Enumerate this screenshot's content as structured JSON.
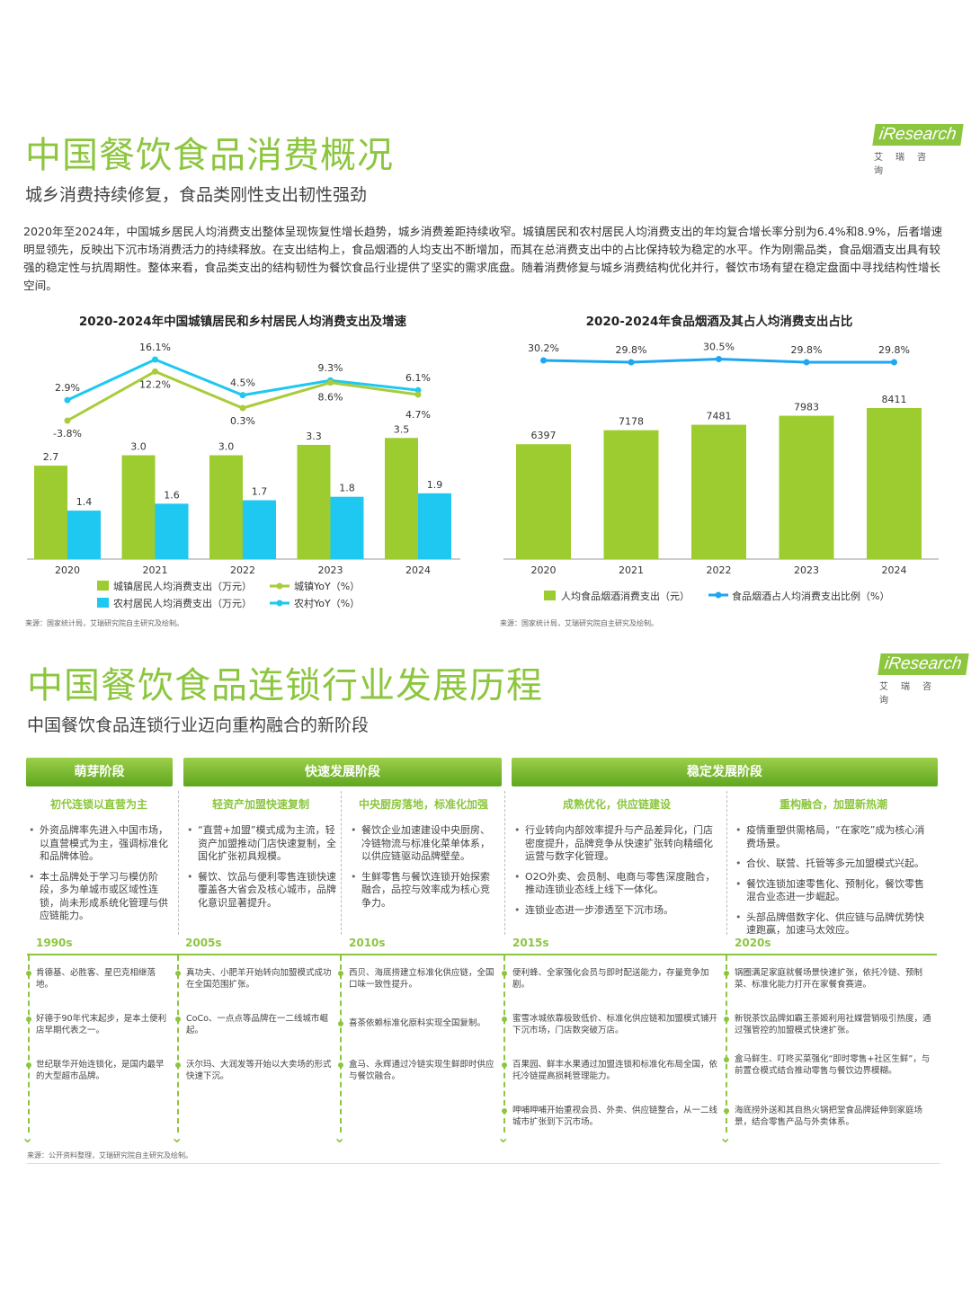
{
  "brand": {
    "logo_text": "iResearch",
    "logo_sub": "艾瑞咨询"
  },
  "section1": {
    "title": "中国餐饮食品消费概况",
    "subtitle": "城乡消费持续修复，食品类刚性支出韧性强劲",
    "paragraph": "2020年至2024年，中国城乡居民人均消费支出整体呈现恢复性增长趋势，城乡消费差距持续收窄。城镇居民和农村居民人均消费支出的年均复合增长率分别为6.4%和8.9%，后者增速明显领先，反映出下沉市场消费活力的持续释放。在支出结构上，食品烟酒的人均支出不断增加，而其在总消费支出中的占比保持较为稳定的水平。作为刚需品类，食品烟酒支出具有较强的稳定性与抗周期性。整体来看，食品类支出的结构韧性为餐饮食品行业提供了坚实的需求底盘。随着消费修复与城乡消费结构优化并行，餐饮市场有望在稳定盘面中寻找结构性增长空间。",
    "source1": "来源：国家统计局，艾瑞研究院自主研究及绘制。",
    "source2": "来源：国家统计局，艾瑞研究院自主研究及绘制。"
  },
  "chart_data": [
    {
      "type": "bar",
      "title": "2020-2024年中国城镇居民和乡村居民人均消费支出及增速",
      "categories": [
        "2020",
        "2021",
        "2022",
        "2023",
        "2024"
      ],
      "series": [
        {
          "name": "城镇居民人均消费支出（万元）",
          "kind": "bar",
          "color": "#9ccc2f",
          "values": [
            2.7,
            3.0,
            3.0,
            3.3,
            3.5
          ],
          "labels": [
            "2.7",
            "3.0",
            "3.0",
            "3.3",
            "3.5"
          ]
        },
        {
          "name": "农村居民人均消费支出（万元）",
          "kind": "bar",
          "color": "#1ec8f0",
          "values": [
            1.4,
            1.6,
            1.7,
            1.8,
            1.9
          ],
          "labels": [
            "1.4",
            "1.6",
            "1.7",
            "1.8",
            "1.9"
          ]
        },
        {
          "name": "城镇YoY（%）",
          "kind": "line",
          "color": "#a8cc3a",
          "values": [
            -3.8,
            12.2,
            0.3,
            8.6,
            4.7
          ],
          "labels": [
            "-3.8%",
            "12.2%",
            "0.3%",
            "8.6%",
            "4.7%"
          ]
        },
        {
          "name": "农村YoY（%）",
          "kind": "line",
          "color": "#1ec8f0",
          "values": [
            2.9,
            16.1,
            4.5,
            9.3,
            6.1
          ],
          "labels": [
            "2.9%",
            "16.1%",
            "4.5%",
            "9.3%",
            "6.1%"
          ]
        }
      ]
    },
    {
      "type": "bar",
      "title": "2020-2024年食品烟酒及其占人均消费支出占比",
      "categories": [
        "2020",
        "2021",
        "2022",
        "2023",
        "2024"
      ],
      "series": [
        {
          "name": "人均食品烟酒消费支出（元）",
          "kind": "bar",
          "color": "#9ccc2f",
          "values": [
            6397,
            7178,
            7481,
            7983,
            8411
          ],
          "labels": [
            "6397",
            "7178",
            "7481",
            "7983",
            "8411"
          ]
        },
        {
          "name": "食品烟酒占人均消费支出比例（%）",
          "kind": "line",
          "color": "#1ea7f0",
          "values": [
            30.2,
            29.8,
            30.5,
            29.8,
            29.8
          ],
          "labels": [
            "30.2%",
            "29.8%",
            "30.5%",
            "29.8%",
            "29.8%"
          ]
        }
      ]
    }
  ],
  "section2": {
    "title": "中国餐饮食品连锁行业发展历程",
    "subtitle": "中国餐饮食品连锁行业迈向重构融合的新阶段",
    "stages": [
      "萌芽阶段",
      "快速发展阶段",
      "稳定发展阶段"
    ],
    "phases": [
      {
        "title": "初代连锁以直营为主",
        "bullets": [
          "外资品牌率先进入中国市场，以直营模式为主，强调标准化和品牌体验。",
          "本土品牌处于学习与模仿阶段，多为单城市或区域性连锁，尚未形成系统化管理与供应链能力。"
        ],
        "year": "1990s",
        "events": [
          "肯德基、必胜客、星巴克相继落地。",
          "好德于90年代末起步，是本土便利店早期代表之一。",
          "世纪联华开始连锁化，是国内最早的大型超市品牌。"
        ]
      },
      {
        "title": "轻资产加盟快速复制",
        "bullets": [
          "“直营+加盟”模式成为主流，轻资产加盟推动门店快速复制，全国化扩张初具规模。",
          "餐饮、饮品与便利零售连锁快速覆盖各大省会及核心城市，品牌化意识显著提升。"
        ],
        "year": "2005s",
        "events": [
          "真功夫、小肥羊开始转向加盟模式成功在全国范围扩张。",
          "CoCo、一点点等品牌在一二线城市崛起。",
          "沃尔玛、大润发等开始以大卖场的形式快速下沉。"
        ]
      },
      {
        "title": "中央厨房落地，标准化加强",
        "bullets": [
          "餐饮企业加速建设中央厨房、冷链物流与标准化菜单体系，以供应链驱动品牌壁垒。",
          "生鲜零售与餐饮连锁开始探索融合，品控与效率成为核心竞争力。"
        ],
        "year": "2010s",
        "events": [
          "西贝、海底捞建立标准化供应链，全国口味一致性提升。",
          "喜茶依赖标准化原料实现全国复制。",
          "盒马、永辉通过冷链实现生鲜即时供应与餐饮融合。"
        ]
      },
      {
        "title": "成熟优化，供应链建设",
        "bullets": [
          "行业转向内部效率提升与产品差异化，门店密度提升，品牌竞争从快速扩张转向精细化运营与数字化管理。",
          "O2O外卖、会员制、电商与零售深度融合，推动连锁业态线上线下一体化。",
          "连锁业态进一步渗透至下沉市场。"
        ],
        "year": "2015s",
        "events": [
          "便利蜂、全家强化会员与即时配送能力，存量竞争加剧。",
          "蜜雪冰城依靠极致低价、标准化供应链和加盟模式铺开下沉市场，门店数突破万店。",
          "百果园、鲜丰水果通过加盟连锁和标准化布局全国，依托冷链提高损耗管理能力。",
          "呷哺呷哺开始重视会员、外卖、供应链整合，从一二线城市扩张到下沉市场。"
        ]
      },
      {
        "title": "重构融合，加盟新热潮",
        "bullets": [
          "疫情重塑供需格局，“在家吃”成为核心消费场景。",
          "合伙、联营、托管等多元加盟模式兴起。",
          "餐饮连锁加速零售化、预制化，餐饮零售混合业态进一步崛起。",
          "头部品牌借数字化、供应链与品牌优势快速跑赢，加速马太效应。"
        ],
        "year": "2020s",
        "events": [
          "锅圈满足家庭就餐场景快速扩张，依托冷链、预制菜、标准化能力打开在家餐食赛道。",
          "新锐茶饮品牌如霸王茶姬利用社媒营销吸引热度，通过强管控的加盟模式快速扩张。",
          "盒马鲜生、叮咚买菜强化“即时零售+社区生鲜”，与前置仓模式结合推动零售与餐饮边界模糊。",
          "海底捞外送和其自热火锅把堂食品牌延伸到家庭场景，结合零售产品与外卖体系。"
        ]
      }
    ],
    "source": "来源：公开资料整理，艾瑞研究院自主研究及绘制。"
  }
}
